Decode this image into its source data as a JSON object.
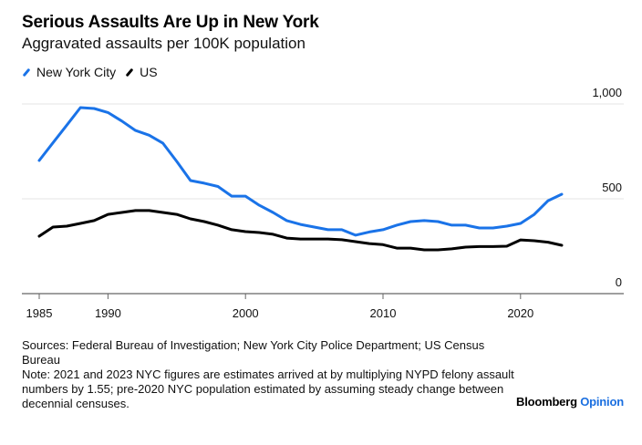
{
  "header": {
    "title": "Serious Assaults Are Up in New York",
    "subtitle": "Aggravated assaults per 100K population"
  },
  "legend": [
    {
      "label": "New York City",
      "color": "#1a73e8",
      "icon": "diagonal-line-icon"
    },
    {
      "label": "US",
      "color": "#000000",
      "icon": "diagonal-line-icon"
    }
  ],
  "chart_data": {
    "type": "line",
    "title": "Serious Assaults Are Up in New York",
    "subtitle": "Aggravated assaults per 100K population",
    "xlabel": "",
    "ylabel": "",
    "x": [
      1985,
      1986,
      1987,
      1988,
      1989,
      1990,
      1991,
      1992,
      1993,
      1994,
      1995,
      1996,
      1997,
      1998,
      1999,
      2000,
      2001,
      2002,
      2003,
      2004,
      2005,
      2006,
      2007,
      2008,
      2009,
      2010,
      2011,
      2012,
      2013,
      2014,
      2015,
      2016,
      2017,
      2018,
      2019,
      2020,
      2021,
      2022,
      2023
    ],
    "series": [
      {
        "name": "New York City",
        "color": "#1a73e8",
        "values": [
          702,
          795,
          888,
          981,
          976,
          955,
          910,
          860,
          835,
          793,
          697,
          596,
          582,
          565,
          514,
          514,
          466,
          428,
          385,
          365,
          351,
          337,
          337,
          308,
          325,
          337,
          361,
          380,
          385,
          380,
          361,
          361,
          346,
          346,
          356,
          370,
          418,
          490,
          524
        ]
      },
      {
        "name": "US",
        "color": "#000000",
        "values": [
          303,
          351,
          356,
          370,
          385,
          418,
          428,
          438,
          438,
          428,
          418,
          394,
          380,
          361,
          337,
          327,
          322,
          313,
          293,
          288,
          288,
          288,
          284,
          274,
          264,
          258,
          240,
          240,
          231,
          231,
          236,
          245,
          248,
          248,
          250,
          283,
          279,
          271,
          255
        ]
      }
    ],
    "xticks": [
      1985,
      1990,
      2000,
      2010,
      2020
    ],
    "yticks": [
      0,
      500,
      1000
    ],
    "ytick_labels": [
      "0",
      "500",
      "1,000"
    ],
    "xlim": [
      1985,
      2026.5
    ],
    "ylim": [
      0,
      1000
    ],
    "grid": true,
    "y_axis_side": "right",
    "legend_position": "top-left"
  },
  "footer": {
    "sources": "Sources: Federal Bureau of Investigation; New York City Police Department; US Census Bureau",
    "note": "Note: 2021 and 2023 NYC figures are estimates arrived at by multiplying NYPD felony assault numbers by 1.55; pre-2020 NYC population estimated by assuming steady change between decennial censuses.",
    "brand_primary": "Bloomberg",
    "brand_secondary": "Opinion"
  }
}
